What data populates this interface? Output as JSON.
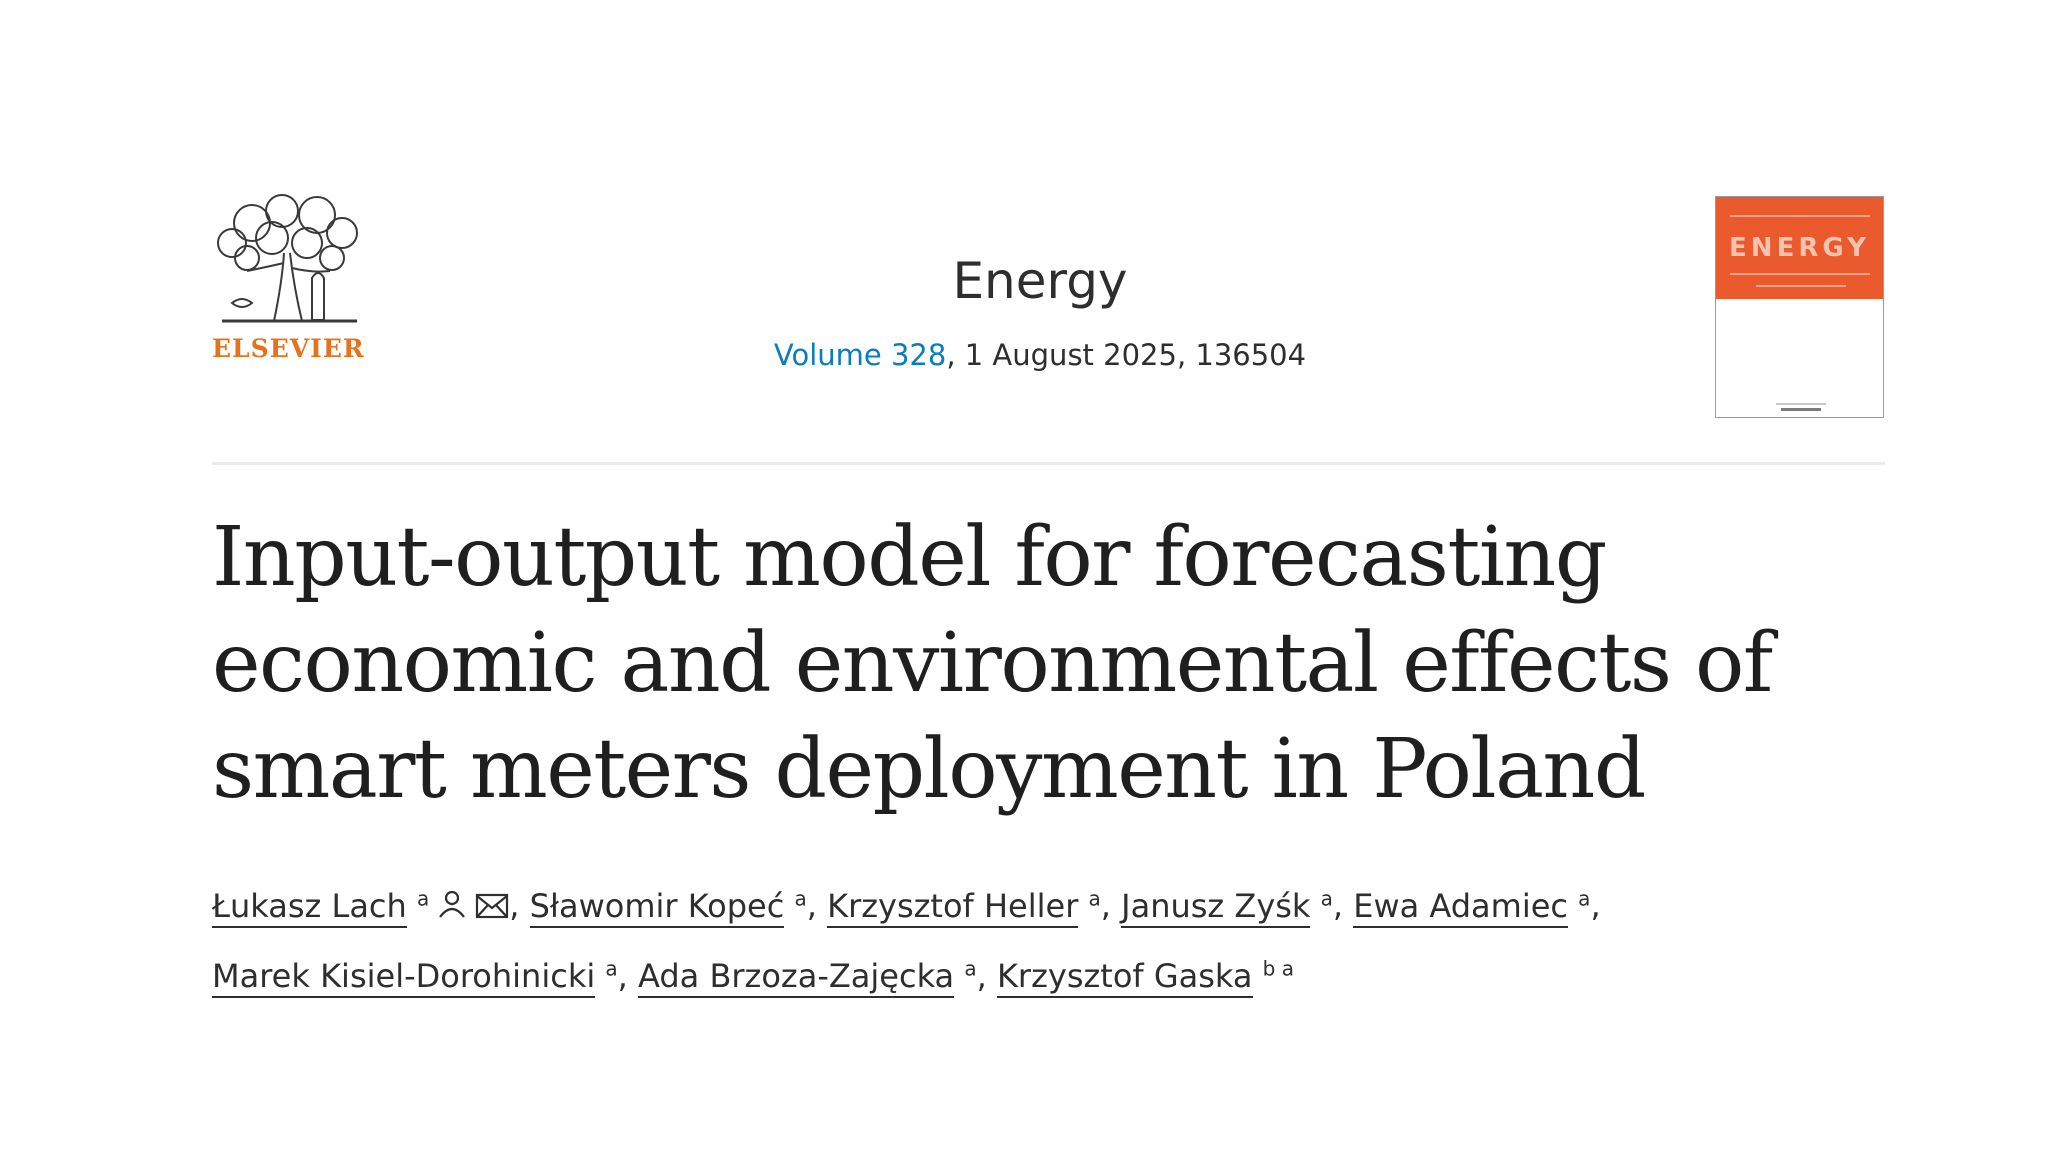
{
  "publisher": {
    "name": "ELSEVIER",
    "logo_icon": "elsevier-tree-icon",
    "brand_color": "#e9711c"
  },
  "journal": {
    "title": "Energy",
    "volume_link": "Volume 328",
    "issue_rest": ", 1 August 2025, 136504",
    "link_color": "#0c7dbb",
    "cover_word": "ENERGY",
    "cover_color": "#ea5a2c"
  },
  "article": {
    "title": "Input-output model for forecasting economic and environmental effects of smart meters deployment in Poland"
  },
  "authors": [
    {
      "name": "Łukasz Lach",
      "aff": "a",
      "separator": ","
    },
    {
      "name": "Sławomir Kopeć",
      "aff": "a",
      "separator": ","
    },
    {
      "name": "Krzysztof Heller",
      "aff": "a",
      "separator": ","
    },
    {
      "name": "Janusz Zyśk",
      "aff": "a",
      "separator": ","
    },
    {
      "name": "Ewa Adamiec",
      "aff": "a",
      "separator": ","
    },
    {
      "name": "Marek Kisiel-Dorohinicki",
      "aff": "a",
      "separator": ","
    },
    {
      "name": "Ada Brzoza-Zajęcka",
      "aff": "a",
      "separator": ","
    },
    {
      "name": "Krzysztof Gaska",
      "aff": "b a",
      "separator": ""
    }
  ],
  "corresponding_icons": [
    "person-icon",
    "email-icon"
  ]
}
